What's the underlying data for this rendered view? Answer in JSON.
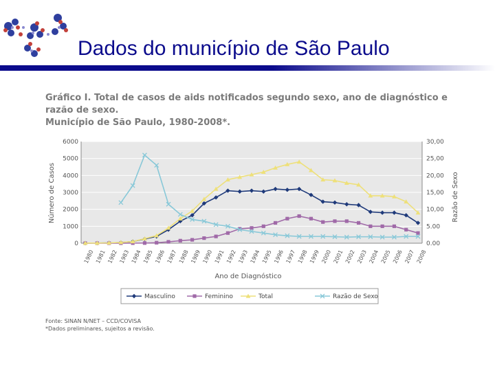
{
  "slide": {
    "title": "Dados do município de São Paulo",
    "accent_color": "#0b0b8c"
  },
  "chart_data": {
    "type": "line",
    "title_line1": "Gráfico I. Total de casos de aids notificados segundo sexo, ano de diagnóstico e razão de sexo.",
    "title_line2": "Município de São Paulo, 1980-2008*.",
    "xlabel": "Ano de Diagnóstico",
    "ylabel_left": "Número de Casos",
    "ylabel_right": "Razão de Sexo",
    "ylim_left": [
      0,
      6000
    ],
    "ylim_right": [
      0,
      30
    ],
    "yticks_left": [
      "0",
      "1000",
      "2000",
      "3000",
      "4000",
      "5000",
      "6000"
    ],
    "yticks_right": [
      "0.00",
      "5.00",
      "10,00",
      "15,00",
      "20,00",
      "25,00",
      "30,00"
    ],
    "grid": true,
    "legend_position": "bottom",
    "x": [
      "1980",
      "1981",
      "1982",
      "1983",
      "1984",
      "1985",
      "1986",
      "1987",
      "1988",
      "1989",
      "1990",
      "1991",
      "1992",
      "1993",
      "1994",
      "1995",
      "1996",
      "1997",
      "1998",
      "1999",
      "2000",
      "2001",
      "2002",
      "2003",
      "2004",
      "2005",
      "2006",
      "2007",
      "2008"
    ],
    "series": [
      {
        "name": "Masculino",
        "axis": "left",
        "color": "#1f3a7a",
        "marker": "diamond",
        "values": [
          5,
          10,
          20,
          40,
          100,
          250,
          400,
          800,
          1300,
          1650,
          2350,
          2700,
          3100,
          3050,
          3100,
          3050,
          3200,
          3150,
          3200,
          2850,
          2450,
          2400,
          2300,
          2250,
          1850,
          1800,
          1800,
          1650,
          1200
        ]
      },
      {
        "name": "Feminino",
        "axis": "left",
        "color": "#a06aa8",
        "marker": "square",
        "values": [
          0,
          0,
          0,
          0,
          5,
          10,
          30,
          80,
          150,
          200,
          300,
          400,
          600,
          850,
          900,
          1000,
          1200,
          1450,
          1600,
          1450,
          1250,
          1300,
          1300,
          1200,
          1000,
          1000,
          1000,
          800,
          600
        ]
      },
      {
        "name": "Total",
        "axis": "left",
        "color": "#eee07a",
        "marker": "triangle",
        "values": [
          5,
          10,
          20,
          50,
          100,
          270,
          450,
          900,
          1450,
          1900,
          2600,
          3200,
          3750,
          3900,
          4050,
          4200,
          4450,
          4650,
          4800,
          4300,
          3750,
          3700,
          3550,
          3450,
          2800,
          2800,
          2750,
          2450,
          1800
        ]
      },
      {
        "name": "Razão de Sexo",
        "axis": "right",
        "color": "#88c8d8",
        "marker": "x",
        "values": [
          null,
          null,
          null,
          12,
          17,
          26,
          23,
          11.5,
          8.5,
          7,
          6.5,
          5.5,
          5,
          4,
          3.5,
          3,
          2.5,
          2.2,
          2,
          2,
          2,
          1.9,
          1.8,
          1.9,
          1.9,
          1.8,
          1.8,
          2,
          2
        ]
      }
    ],
    "source_note": "Fonte: SINAN N/NET – CCD/COVISA",
    "footnote": "*Dados preliminares, sujeitos a revisão."
  }
}
